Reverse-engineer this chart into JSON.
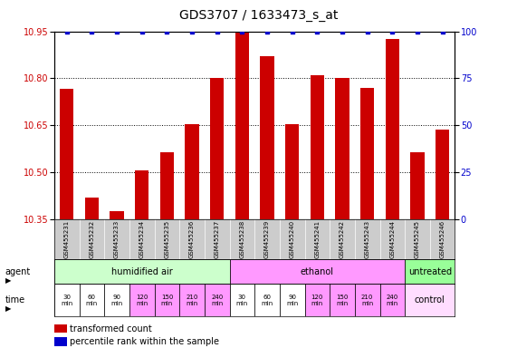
{
  "title": "GDS3707 / 1633473_s_at",
  "samples": [
    "GSM455231",
    "GSM455232",
    "GSM455233",
    "GSM455234",
    "GSM455235",
    "GSM455236",
    "GSM455237",
    "GSM455238",
    "GSM455239",
    "GSM455240",
    "GSM455241",
    "GSM455242",
    "GSM455243",
    "GSM455244",
    "GSM455245",
    "GSM455246"
  ],
  "bar_values": [
    10.765,
    10.42,
    10.375,
    10.505,
    10.565,
    10.655,
    10.8,
    10.945,
    10.87,
    10.655,
    10.81,
    10.8,
    10.77,
    10.925,
    10.565,
    10.635
  ],
  "percentile_values": [
    100,
    100,
    100,
    100,
    100,
    100,
    100,
    100,
    100,
    100,
    100,
    100,
    100,
    100,
    100,
    100
  ],
  "ylim_left": [
    10.35,
    10.95
  ],
  "ylim_right": [
    0,
    100
  ],
  "yticks_left": [
    10.35,
    10.5,
    10.65,
    10.8,
    10.95
  ],
  "yticks_right": [
    0,
    25,
    50,
    75,
    100
  ],
  "bar_color": "#cc0000",
  "percentile_color": "#0000cc",
  "bar_width": 0.55,
  "agent_groups": [
    {
      "label": "humidified air",
      "start": 0,
      "end": 7,
      "color": "#ccffcc"
    },
    {
      "label": "ethanol",
      "start": 7,
      "end": 14,
      "color": "#ff99ff"
    },
    {
      "label": "untreated",
      "start": 14,
      "end": 16,
      "color": "#99ff99"
    }
  ],
  "time_colors": [
    "#ffffff",
    "#ffffff",
    "#ffffff",
    "#ff99ff",
    "#ff99ff",
    "#ff99ff",
    "#ff99ff",
    "#ffffff",
    "#ffffff",
    "#ffffff",
    "#ff99ff",
    "#ff99ff",
    "#ff99ff",
    "#ff99ff"
  ],
  "time_labels": [
    "30\nmin",
    "60\nmin",
    "90\nmin",
    "120\nmin",
    "150\nmin",
    "210\nmin",
    "240\nmin",
    "30\nmin",
    "60\nmin",
    "90\nmin",
    "120\nmin",
    "150\nmin",
    "210\nmin",
    "240\nmin"
  ],
  "control_label": "control",
  "control_color": "#ffddff",
  "agent_label": "agent",
  "time_label": "time",
  "legend_bar_label": "transformed count",
  "legend_pct_label": "percentile rank within the sample",
  "sample_bg_color": "#cccccc",
  "background_color": "#ffffff",
  "title_fontsize": 10,
  "tick_fontsize": 7,
  "sample_fontsize": 5,
  "row_fontsize": 7,
  "legend_fontsize": 7
}
